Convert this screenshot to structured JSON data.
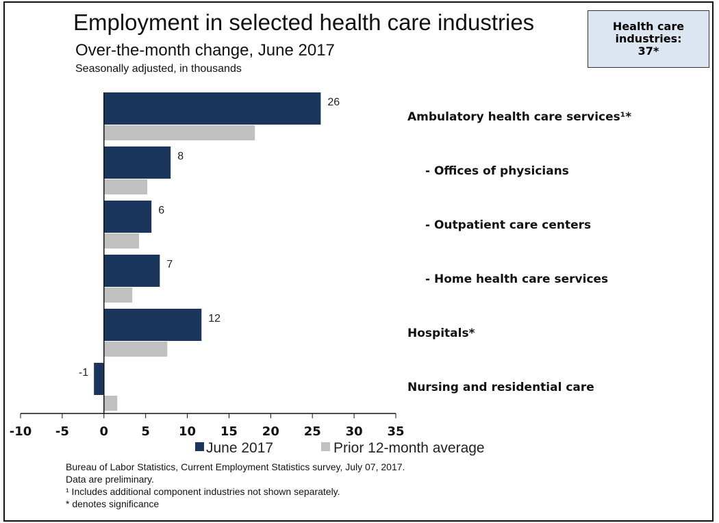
{
  "callout": {
    "text": "Health care\nindustries:\n37*"
  },
  "chart_data": {
    "type": "bar",
    "orientation": "horizontal",
    "title": "Employment in selected health care industries",
    "subtitle": "Over-the-month change, June 2017",
    "units": "Seasonally adjusted, in thousands",
    "categories": [
      "Ambulatory health care services¹*",
      "- Offices of physicians",
      "- Outpatient care centers",
      "- Home health care services",
      "Hospitals*",
      "Nursing and residential care"
    ],
    "series": [
      {
        "name": "June 2017",
        "color": "#1b365d",
        "values": [
          26,
          8,
          5.7,
          6.7,
          11.7,
          -1.2
        ],
        "labels": [
          "26",
          "8",
          "6",
          "7",
          "12",
          "-1"
        ]
      },
      {
        "name": "Prior 12-month average",
        "color": "#c0c0c0",
        "values": [
          18.1,
          5.2,
          4.2,
          3.4,
          7.6,
          1.6
        ]
      }
    ],
    "xlim": [
      -10,
      35
    ],
    "xticks": [
      "-10",
      "-5",
      "0",
      "5",
      "10",
      "15",
      "20",
      "25",
      "30",
      "35"
    ],
    "grid": false,
    "legend": "bottom"
  },
  "notes": [
    "Bureau of Labor Statistics, Current Employment Statistics survey, July 07, 2017.",
    "Data are preliminary.",
    "¹ Includes additional component industries not shown separately.",
    "* denotes significance"
  ]
}
